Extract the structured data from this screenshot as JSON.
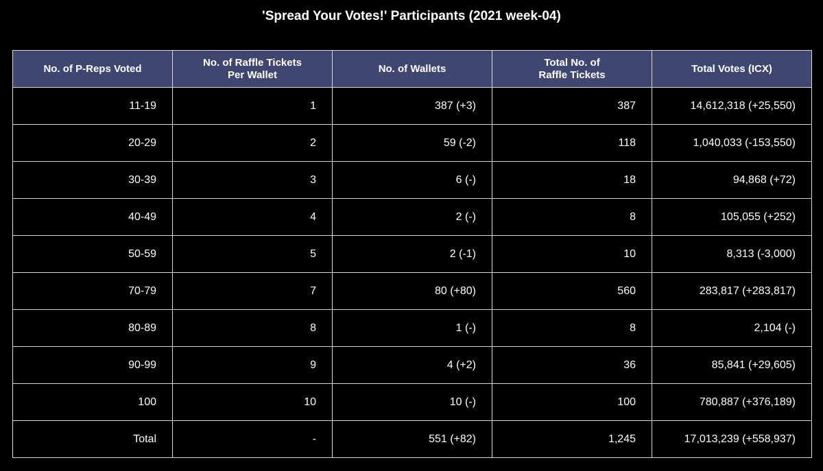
{
  "chart_data": {
    "type": "table",
    "title": "'Spread Your Votes!' Participants (2021 week-04)",
    "columns": [
      "No. of P-Reps Voted",
      "No. of Raffle Tickets\nPer Wallet",
      "No. of Wallets",
      "Total No. of\nRaffle Tickets",
      "Total Votes (ICX)"
    ],
    "rows": [
      [
        "11-19",
        "1",
        "387 (+3)",
        "387",
        "14,612,318 (+25,550)"
      ],
      [
        "20-29",
        "2",
        "59 (-2)",
        "118",
        "1,040,033 (-153,550)"
      ],
      [
        "30-39",
        "3",
        "6 (-)",
        "18",
        "94,868 (+72)"
      ],
      [
        "40-49",
        "4",
        "2 (-)",
        "8",
        "105,055 (+252)"
      ],
      [
        "50-59",
        "5",
        "2 (-1)",
        "10",
        "8,313 (-3,000)"
      ],
      [
        "70-79",
        "7",
        "80 (+80)",
        "560",
        "283,817 (+283,817)"
      ],
      [
        "80-89",
        "8",
        "1 (-)",
        "8",
        "2,104 (-)"
      ],
      [
        "90-99",
        "9",
        "4 (+2)",
        "36",
        "85,841 (+29,605)"
      ],
      [
        "100",
        "10",
        "10 (-)",
        "100",
        "780,887 (+376,189)"
      ],
      [
        "Total",
        "-",
        "551 (+82)",
        "1,245",
        "17,013,239 (+558,937)"
      ]
    ],
    "colors": {
      "background": "#000000",
      "header_background": "#3f4770",
      "text": "#ffffff",
      "border": "#d9d9d9"
    }
  }
}
